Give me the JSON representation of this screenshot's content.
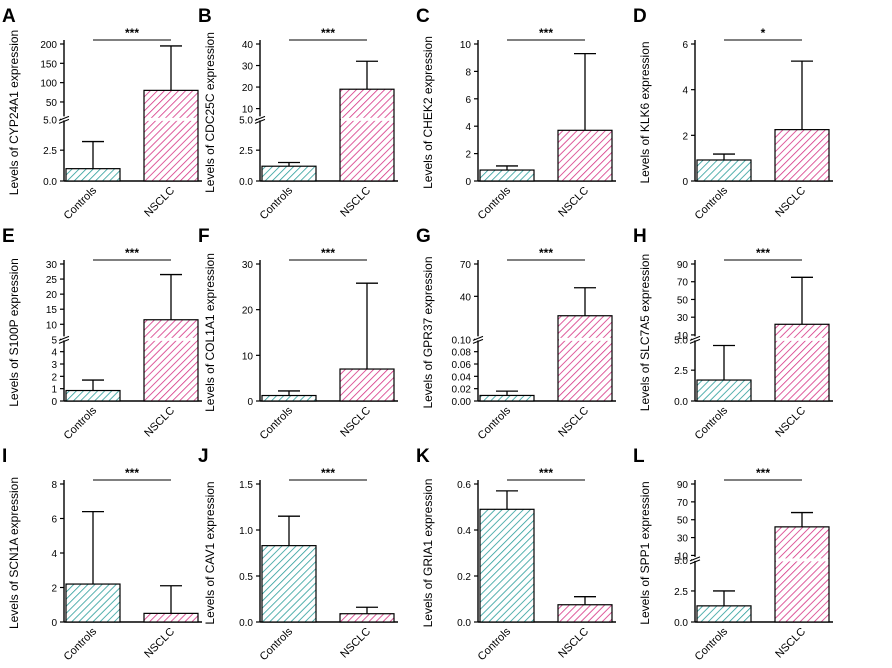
{
  "colors": {
    "controls_hatch": "#2a9d9a",
    "nsclc_hatch": "#d63384",
    "axis": "#000000",
    "break_gap": "#ffffff"
  },
  "chart_data": [
    {
      "panel": "A",
      "type": "bar",
      "ylabel": "Levels of CYP24A1 expression",
      "categories": [
        "Controls",
        "NSCLC"
      ],
      "values": [
        1.0,
        80
      ],
      "errors": [
        3.2,
        195
      ],
      "significance": "***",
      "axis_break": {
        "lower": [
          0,
          5.0
        ],
        "upper": [
          5.0,
          200
        ]
      },
      "yticks": [
        {
          "v": 0,
          "label": "0.0"
        },
        {
          "v": 2.5,
          "label": "2.5"
        },
        {
          "v": 5.0,
          "label": "5.0"
        },
        {
          "v": 50,
          "label": "50"
        },
        {
          "v": 100,
          "label": "100"
        },
        {
          "v": 150,
          "label": "150"
        },
        {
          "v": 200,
          "label": "200"
        }
      ]
    },
    {
      "panel": "B",
      "type": "bar",
      "ylabel": "Levels of CDC25C expression",
      "categories": [
        "Controls",
        "NSCLC"
      ],
      "values": [
        1.2,
        19
      ],
      "errors": [
        1.5,
        32
      ],
      "significance": "***",
      "axis_break": {
        "lower": [
          0,
          5.0
        ],
        "upper": [
          5.0,
          40
        ]
      },
      "yticks": [
        {
          "v": 0,
          "label": "0.0"
        },
        {
          "v": 2.5,
          "label": "2.5"
        },
        {
          "v": 5.0,
          "label": "5.0"
        },
        {
          "v": 10,
          "label": "10"
        },
        {
          "v": 20,
          "label": "20"
        },
        {
          "v": 30,
          "label": "30"
        },
        {
          "v": 40,
          "label": "40"
        }
      ]
    },
    {
      "panel": "C",
      "type": "bar",
      "ylabel": "Levels of CHEK2 expression",
      "categories": [
        "Controls",
        "NSCLC"
      ],
      "values": [
        0.8,
        3.7
      ],
      "errors": [
        1.1,
        9.3
      ],
      "significance": "***",
      "ylim": [
        0,
        10
      ],
      "yticks": [
        {
          "v": 0,
          "label": "0"
        },
        {
          "v": 2,
          "label": "2"
        },
        {
          "v": 4,
          "label": "4"
        },
        {
          "v": 6,
          "label": "6"
        },
        {
          "v": 8,
          "label": "8"
        },
        {
          "v": 10,
          "label": "10"
        }
      ]
    },
    {
      "panel": "D",
      "type": "bar",
      "ylabel": "Levels of KLK6 expression",
      "categories": [
        "Controls",
        "NSCLC"
      ],
      "values": [
        0.92,
        2.25
      ],
      "errors": [
        1.18,
        5.25
      ],
      "significance": "*",
      "ylim": [
        0,
        6
      ],
      "yticks": [
        {
          "v": 0,
          "label": "0"
        },
        {
          "v": 2,
          "label": "2"
        },
        {
          "v": 4,
          "label": "4"
        },
        {
          "v": 6,
          "label": "6"
        }
      ]
    },
    {
      "panel": "E",
      "type": "bar",
      "ylabel": "Levels of S100P expression",
      "categories": [
        "Controls",
        "NSCLC"
      ],
      "values": [
        0.85,
        11.5
      ],
      "errors": [
        1.7,
        26.5
      ],
      "significance": "***",
      "axis_break": {
        "lower": [
          0,
          5
        ],
        "upper": [
          5,
          30
        ]
      },
      "yticks": [
        {
          "v": 0,
          "label": "0"
        },
        {
          "v": 1,
          "label": "1"
        },
        {
          "v": 2,
          "label": "2"
        },
        {
          "v": 3,
          "label": "3"
        },
        {
          "v": 4,
          "label": "4"
        },
        {
          "v": 5,
          "label": "5"
        },
        {
          "v": 10,
          "label": "10"
        },
        {
          "v": 15,
          "label": "15"
        },
        {
          "v": 20,
          "label": "20"
        },
        {
          "v": 25,
          "label": "25"
        },
        {
          "v": 30,
          "label": "30"
        }
      ]
    },
    {
      "panel": "F",
      "type": "bar",
      "ylabel": "Levels of COL1A1 expression",
      "categories": [
        "Controls",
        "NSCLC"
      ],
      "values": [
        1.2,
        7.0
      ],
      "errors": [
        2.2,
        25.8
      ],
      "significance": "***",
      "ylim": [
        0,
        30
      ],
      "yticks": [
        {
          "v": 0,
          "label": "0"
        },
        {
          "v": 10,
          "label": "10"
        },
        {
          "v": 20,
          "label": "20"
        },
        {
          "v": 30,
          "label": "30"
        }
      ]
    },
    {
      "panel": "G",
      "type": "bar",
      "ylabel": "Levels of GPR37 expression",
      "categories": [
        "Controls",
        "NSCLC"
      ],
      "values": [
        0.009,
        22
      ],
      "errors": [
        0.016,
        48
      ],
      "significance": "***",
      "axis_break": {
        "lower": [
          0,
          0.1
        ],
        "upper": [
          0.1,
          70
        ]
      },
      "yticks": [
        {
          "v": 0,
          "label": "0.00"
        },
        {
          "v": 0.02,
          "label": "0.02"
        },
        {
          "v": 0.04,
          "label": "0.04"
        },
        {
          "v": 0.06,
          "label": "0.06"
        },
        {
          "v": 0.08,
          "label": "0.08"
        },
        {
          "v": 0.1,
          "label": "0.10"
        },
        {
          "v": 40,
          "label": "40"
        },
        {
          "v": 70,
          "label": "70"
        }
      ]
    },
    {
      "panel": "H",
      "type": "bar",
      "ylabel": "Levels of SLC7A5 expression",
      "categories": [
        "Controls",
        "NSCLC"
      ],
      "values": [
        1.7,
        22
      ],
      "errors": [
        4.5,
        75
      ],
      "significance": "***",
      "axis_break": {
        "lower": [
          0,
          5.0
        ],
        "upper": [
          5.0,
          90
        ]
      },
      "yticks": [
        {
          "v": 0,
          "label": "0.0"
        },
        {
          "v": 2.5,
          "label": "2.5"
        },
        {
          "v": 5.0,
          "label": "5.0"
        },
        {
          "v": 10,
          "label": "10"
        },
        {
          "v": 30,
          "label": "30"
        },
        {
          "v": 50,
          "label": "50"
        },
        {
          "v": 70,
          "label": "70"
        },
        {
          "v": 90,
          "label": "90"
        }
      ]
    },
    {
      "panel": "I",
      "type": "bar",
      "ylabel": "Levels of SCN1A expression",
      "categories": [
        "Controls",
        "NSCLC"
      ],
      "values": [
        2.2,
        0.5
      ],
      "errors": [
        6.4,
        2.1
      ],
      "significance": "***",
      "ylim": [
        0,
        8
      ],
      "yticks": [
        {
          "v": 0,
          "label": "0"
        },
        {
          "v": 2,
          "label": "2"
        },
        {
          "v": 4,
          "label": "4"
        },
        {
          "v": 6,
          "label": "6"
        },
        {
          "v": 8,
          "label": "8"
        }
      ]
    },
    {
      "panel": "J",
      "type": "bar",
      "ylabel": "Levels of CAV1 expression",
      "categories": [
        "Controls",
        "NSCLC"
      ],
      "values": [
        0.83,
        0.09
      ],
      "errors": [
        1.15,
        0.16
      ],
      "significance": "***",
      "ylim": [
        0,
        1.5
      ],
      "yticks": [
        {
          "v": 0,
          "label": "0.0"
        },
        {
          "v": 0.5,
          "label": "0.5"
        },
        {
          "v": 1.0,
          "label": "1.0"
        },
        {
          "v": 1.5,
          "label": "1.5"
        }
      ]
    },
    {
      "panel": "K",
      "type": "bar",
      "ylabel": "Levels of GRIA1 expression",
      "categories": [
        "Controls",
        "NSCLC"
      ],
      "values": [
        0.49,
        0.075
      ],
      "errors": [
        0.57,
        0.11
      ],
      "significance": "***",
      "ylim": [
        0,
        0.6
      ],
      "yticks": [
        {
          "v": 0,
          "label": "0.0"
        },
        {
          "v": 0.2,
          "label": "0.2"
        },
        {
          "v": 0.4,
          "label": "0.4"
        },
        {
          "v": 0.6,
          "label": "0.6"
        }
      ]
    },
    {
      "panel": "L",
      "type": "bar",
      "ylabel": "Levels of SPP1 expression",
      "categories": [
        "Controls",
        "NSCLC"
      ],
      "values": [
        1.3,
        42
      ],
      "errors": [
        2.5,
        58
      ],
      "significance": "***",
      "axis_break": {
        "lower": [
          0,
          5.0
        ],
        "upper": [
          5.0,
          90
        ]
      },
      "yticks": [
        {
          "v": 0,
          "label": "0.0"
        },
        {
          "v": 2.5,
          "label": "2.5"
        },
        {
          "v": 5.0,
          "label": "5.0"
        },
        {
          "v": 10,
          "label": "10"
        },
        {
          "v": 30,
          "label": "30"
        },
        {
          "v": 50,
          "label": "50"
        },
        {
          "v": 70,
          "label": "70"
        },
        {
          "v": 90,
          "label": "90"
        }
      ]
    }
  ]
}
